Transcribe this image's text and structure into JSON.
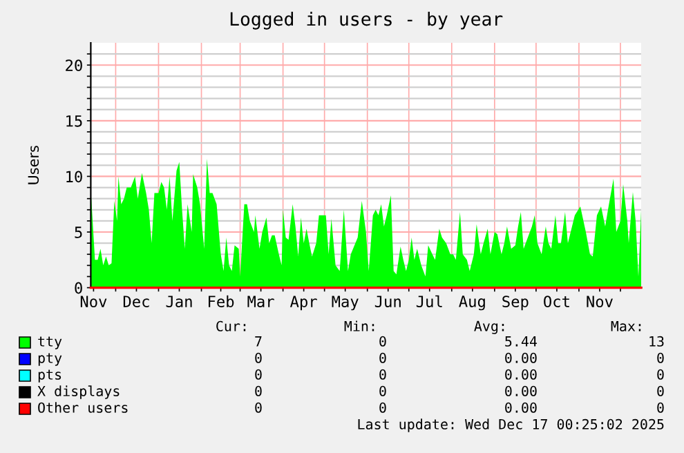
{
  "chart_data": {
    "type": "area",
    "title": "Logged in users - by year",
    "ylabel": "Users",
    "xlim": [
      "2024-11-13",
      "2025-12-16"
    ],
    "ylim": [
      0,
      22
    ],
    "xticks": [
      {
        "value": "2024-11-15",
        "label": "Nov"
      },
      {
        "value": "2024-12-01",
        "label": null
      },
      {
        "value": "2024-12-16",
        "label": "Dec"
      },
      {
        "value": "2025-01-01",
        "label": null
      },
      {
        "value": "2025-01-16",
        "label": "Jan"
      },
      {
        "value": "2025-02-01",
        "label": null
      },
      {
        "value": "2025-02-15",
        "label": "Feb"
      },
      {
        "value": "2025-03-01",
        "label": null
      },
      {
        "value": "2025-03-16",
        "label": "Mar"
      },
      {
        "value": "2025-04-01",
        "label": null
      },
      {
        "value": "2025-04-16",
        "label": "Apr"
      },
      {
        "value": "2025-05-01",
        "label": null
      },
      {
        "value": "2025-05-16",
        "label": "May"
      },
      {
        "value": "2025-06-01",
        "label": null
      },
      {
        "value": "2025-06-16",
        "label": "Jun"
      },
      {
        "value": "2025-07-01",
        "label": null
      },
      {
        "value": "2025-07-16",
        "label": "Jul"
      },
      {
        "value": "2025-08-01",
        "label": null
      },
      {
        "value": "2025-08-16",
        "label": "Aug"
      },
      {
        "value": "2025-09-01",
        "label": null
      },
      {
        "value": "2025-09-16",
        "label": "Sep"
      },
      {
        "value": "2025-10-01",
        "label": null
      },
      {
        "value": "2025-10-16",
        "label": "Oct"
      },
      {
        "value": "2025-11-01",
        "label": null
      },
      {
        "value": "2025-11-16",
        "label": "Nov"
      },
      {
        "value": "2025-12-01",
        "label": null
      }
    ],
    "yticks": [
      0,
      {
        "value": 1,
        "label": null
      },
      {
        "value": 2,
        "label": null
      },
      {
        "value": 3,
        "label": null
      },
      {
        "value": 4,
        "label": null
      },
      5,
      {
        "value": 6,
        "label": null
      },
      {
        "value": 7,
        "label": null
      },
      {
        "value": 8,
        "label": null
      },
      {
        "value": 9,
        "label": null
      },
      10,
      {
        "value": 11,
        "label": null
      },
      {
        "value": 12,
        "label": null
      },
      {
        "value": 13,
        "label": null
      },
      {
        "value": 14,
        "label": null
      },
      15,
      {
        "value": 16,
        "label": null
      },
      {
        "value": 17,
        "label": null
      },
      {
        "value": 18,
        "label": null
      },
      {
        "value": 19,
        "label": null
      },
      20,
      {
        "value": 21,
        "label": null
      }
    ],
    "grid": true,
    "legend": "bottom",
    "series": [
      {
        "name": "tty",
        "color": "#00ff00",
        "x": [
          "2024-11-13",
          "2024-11-16",
          "2024-11-18",
          "2024-11-20",
          "2024-11-22",
          "2024-11-24",
          "2024-11-26",
          "2024-11-28",
          "2024-11-30",
          "2024-12-02",
          "2024-12-03",
          "2024-12-05",
          "2024-12-07",
          "2024-12-09",
          "2024-12-12",
          "2024-12-15",
          "2024-12-17",
          "2024-12-20",
          "2024-12-23",
          "2024-12-25",
          "2024-12-27",
          "2024-12-29",
          "2025-01-01",
          "2025-01-03",
          "2025-01-05",
          "2025-01-07",
          "2025-01-09",
          "2025-01-11",
          "2025-01-14",
          "2025-01-16",
          "2025-01-18",
          "2025-01-20",
          "2025-01-22",
          "2025-01-25",
          "2025-01-26",
          "2025-01-29",
          "2025-01-31",
          "2025-02-03",
          "2025-02-05",
          "2025-02-07",
          "2025-02-09",
          "2025-02-12",
          "2025-02-15",
          "2025-02-17",
          "2025-02-19",
          "2025-02-21",
          "2025-02-23",
          "2025-02-25",
          "2025-02-28",
          "2025-03-01",
          "2025-03-04",
          "2025-03-06",
          "2025-03-08",
          "2025-03-11",
          "2025-03-12",
          "2025-03-15",
          "2025-03-17",
          "2025-03-20",
          "2025-03-22",
          "2025-03-24",
          "2025-03-26",
          "2025-03-29",
          "2025-03-31",
          "2025-04-01",
          "2025-04-03",
          "2025-04-05",
          "2025-04-08",
          "2025-04-10",
          "2025-04-12",
          "2025-04-14",
          "2025-04-16",
          "2025-04-18",
          "2025-04-20",
          "2025-04-22",
          "2025-04-25",
          "2025-04-27",
          "2025-04-30",
          "2025-05-02",
          "2025-05-04",
          "2025-05-06",
          "2025-05-09",
          "2025-05-12",
          "2025-05-15",
          "2025-05-18",
          "2025-05-20",
          "2025-05-25",
          "2025-05-28",
          "2025-05-31",
          "2025-06-02",
          "2025-06-05",
          "2025-06-07",
          "2025-06-09",
          "2025-06-11",
          "2025-06-13",
          "2025-06-15",
          "2025-06-18",
          "2025-06-20",
          "2025-06-22",
          "2025-06-25",
          "2025-06-27",
          "2025-06-29",
          "2025-07-01",
          "2025-07-03",
          "2025-07-05",
          "2025-07-07",
          "2025-07-10",
          "2025-07-13",
          "2025-07-15",
          "2025-07-18",
          "2025-07-20",
          "2025-07-23",
          "2025-07-25",
          "2025-07-28",
          "2025-07-31",
          "2025-08-02",
          "2025-08-04",
          "2025-08-07",
          "2025-08-09",
          "2025-08-12",
          "2025-08-14",
          "2025-08-17",
          "2025-08-19",
          "2025-08-22",
          "2025-08-24",
          "2025-08-27",
          "2025-08-29",
          "2025-09-01",
          "2025-09-03",
          "2025-09-06",
          "2025-09-08",
          "2025-09-10",
          "2025-09-13",
          "2025-09-16",
          "2025-09-18",
          "2025-09-20",
          "2025-09-22",
          "2025-09-25",
          "2025-09-28",
          "2025-09-30",
          "2025-10-02",
          "2025-10-05",
          "2025-10-08",
          "2025-10-10",
          "2025-10-12",
          "2025-10-15",
          "2025-10-17",
          "2025-10-19",
          "2025-10-22",
          "2025-10-24",
          "2025-10-27",
          "2025-10-29",
          "2025-11-02",
          "2025-11-06",
          "2025-11-09",
          "2025-11-11",
          "2025-11-14",
          "2025-11-17",
          "2025-11-20",
          "2025-11-22",
          "2025-11-26",
          "2025-11-28",
          "2025-12-01",
          "2025-12-03",
          "2025-12-06",
          "2025-12-07",
          "2025-12-10",
          "2025-12-12",
          "2025-12-14",
          "2025-12-16"
        ],
        "values": [
          8.8,
          2.5,
          2.5,
          3.5,
          2.0,
          2.8,
          2.0,
          2.2,
          7.8,
          6.0,
          10.0,
          7.5,
          8.0,
          9.0,
          9.0,
          10.0,
          8.0,
          10.3,
          8.5,
          7.0,
          4.0,
          8.5,
          8.5,
          9.5,
          9.0,
          7.0,
          10.0,
          6.0,
          10.5,
          11.3,
          7.0,
          3.5,
          7.5,
          5.0,
          10.2,
          9.0,
          7.5,
          3.5,
          11.6,
          8.5,
          8.5,
          7.5,
          3.0,
          1.5,
          4.5,
          2.0,
          1.5,
          3.8,
          3.5,
          1.0,
          7.5,
          7.5,
          6.0,
          5.0,
          6.5,
          3.5,
          5.0,
          6.3,
          4.0,
          4.7,
          4.7,
          3.0,
          2.0,
          7.0,
          4.5,
          4.3,
          7.5,
          5.5,
          2.8,
          6.3,
          4.0,
          5.3,
          4.0,
          2.8,
          4.0,
          6.5,
          6.5,
          6.5,
          3.0,
          6.2,
          2.0,
          1.5,
          7.0,
          1.5,
          3.0,
          4.5,
          7.8,
          5.0,
          1.5,
          6.5,
          7.0,
          6.5,
          7.5,
          5.5,
          6.5,
          8.3,
          1.5,
          1.2,
          3.7,
          2.5,
          1.5,
          2.5,
          4.5,
          2.5,
          3.5,
          2.0,
          1.0,
          3.8,
          3.0,
          2.5,
          5.3,
          4.5,
          4.0,
          3.0,
          3.0,
          2.5,
          6.8,
          3.0,
          2.5,
          1.5,
          3.0,
          5.7,
          3.0,
          4.0,
          5.3,
          3.0,
          5.0,
          4.8,
          3.0,
          4.0,
          5.5,
          3.5,
          3.8,
          5.5,
          6.8,
          3.5,
          4.5,
          5.5,
          6.5,
          4.0,
          3.0,
          5.5,
          4.0,
          3.5,
          6.5,
          4.0,
          4.0,
          6.8,
          4.0,
          5.5,
          6.5,
          7.3,
          5.0,
          3.0,
          2.8,
          6.5,
          7.3,
          5.5,
          7.0,
          9.8,
          5.0,
          6.0,
          9.3,
          6.0,
          4.0,
          8.6,
          6.0,
          1.0,
          7.0
        ]
      },
      {
        "name": "pty",
        "type": "line",
        "color": "#0000ff"
      },
      {
        "name": "pts",
        "type": "line",
        "color": "#00ffff"
      },
      {
        "name": "X displays",
        "type": "line",
        "color": "#000000"
      },
      {
        "name": "Other users",
        "type": "line",
        "color": "#ff0000",
        "x": [
          "2024-11-13",
          "2025-12-16"
        ],
        "values": [
          0,
          0
        ]
      }
    ],
    "annotations": [
      "Cur:",
      "Min:",
      "Avg:",
      "Max:",
      "7",
      "0",
      "5.44",
      "13",
      "0",
      "0",
      "0.00",
      "0",
      "0",
      "0",
      "0.00",
      "0",
      "0",
      "0",
      "0.00",
      "0",
      "0",
      "0",
      "0.00",
      "0",
      "Last update: Wed Dec 17 00:25:02 2025"
    ]
  }
}
